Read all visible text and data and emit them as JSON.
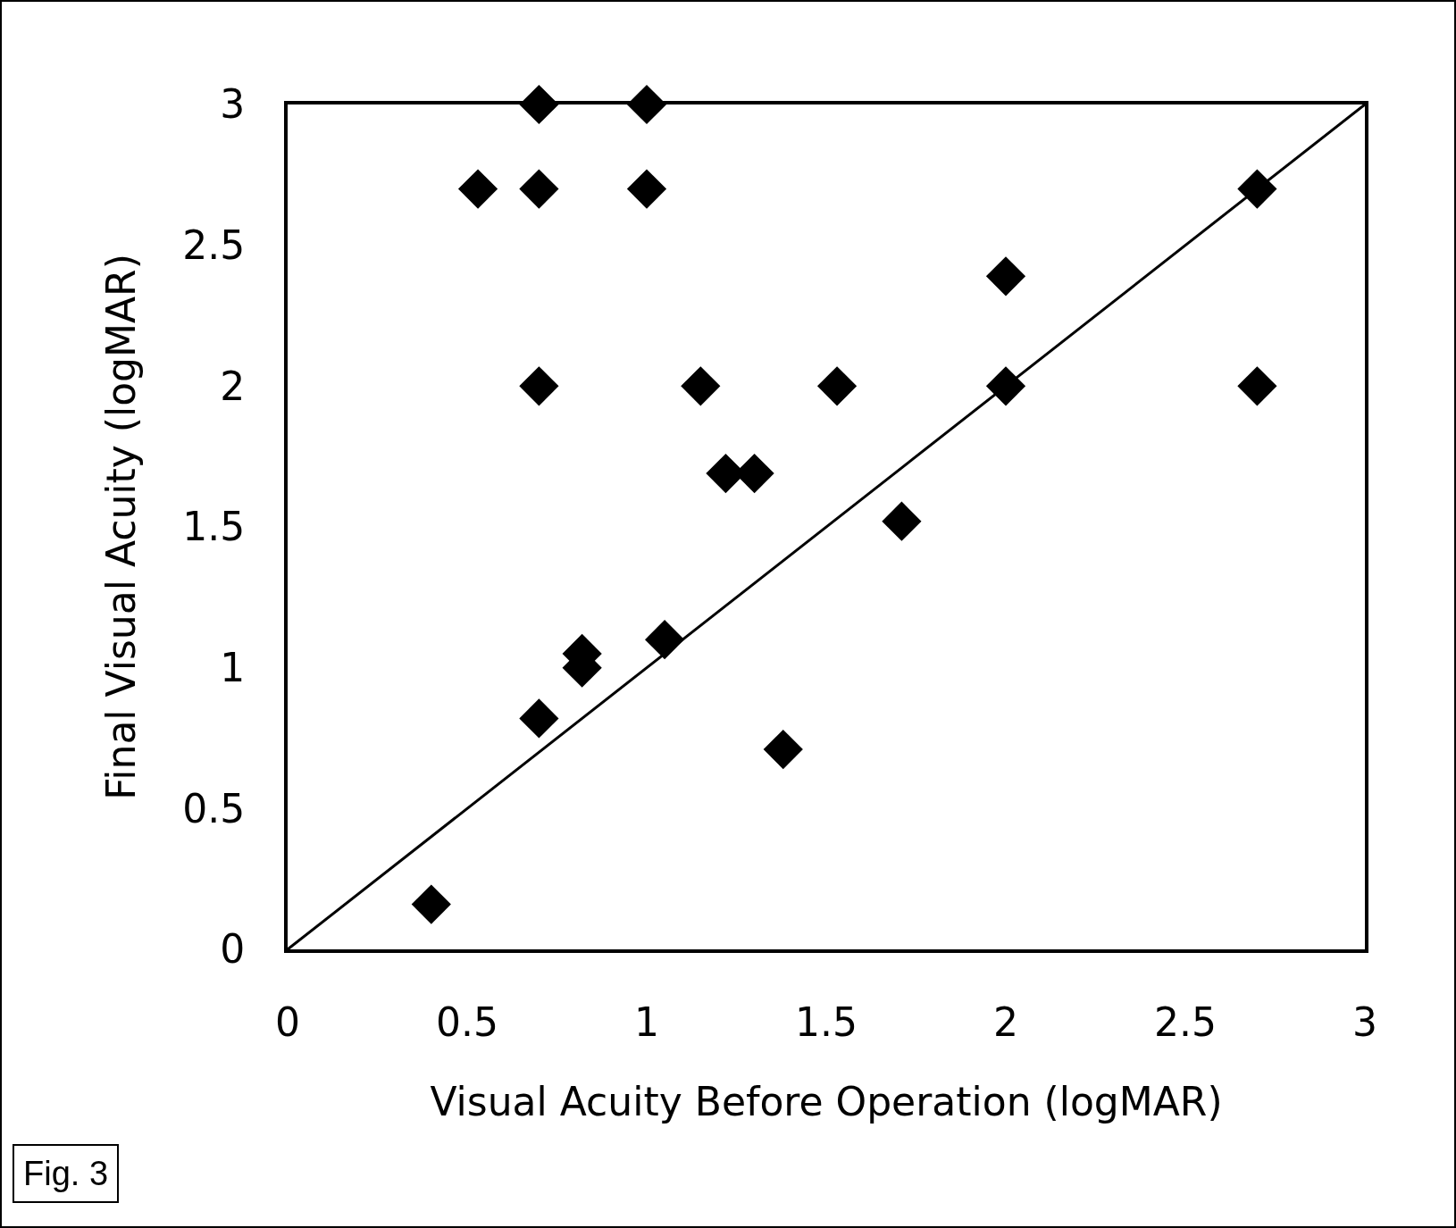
{
  "chart_data": {
    "type": "scatter",
    "xlabel": "Visual Acuity Before Operation (logMAR)",
    "ylabel": "Final Visual Acuity (logMAR)",
    "annotations": [
      "Fig. 3"
    ],
    "series": [
      {
        "color": "#000000",
        "marker": "diamond",
        "x": [
          0.7,
          1.0,
          0.53,
          0.7,
          1.0,
          2.7,
          2.0,
          0.7,
          1.15,
          1.53,
          2.0,
          2.7,
          1.22,
          1.3,
          1.71,
          0.82,
          0.82,
          1.05,
          0.7,
          1.38,
          0.4
        ],
        "values": [
          3,
          3,
          2.7,
          2.7,
          2.7,
          2.7,
          2.39,
          2.0,
          2.0,
          2.0,
          2.0,
          2.0,
          1.69,
          1.69,
          1.52,
          1.05,
          1.0,
          1.1,
          0.82,
          0.71,
          0.16
        ]
      },
      {
        "type": "line",
        "color": "#000000",
        "marker": "none",
        "line_style": "solid",
        "x": [
          0,
          3
        ],
        "values": [
          0,
          3
        ]
      }
    ],
    "xlim": [
      0,
      3
    ],
    "ylim": [
      0,
      3
    ],
    "xticks": [
      0,
      0.5,
      1,
      1.5,
      2,
      2.5,
      3
    ],
    "yticks": [
      0,
      0.5,
      1,
      1.5,
      2,
      2.5,
      3
    ]
  }
}
